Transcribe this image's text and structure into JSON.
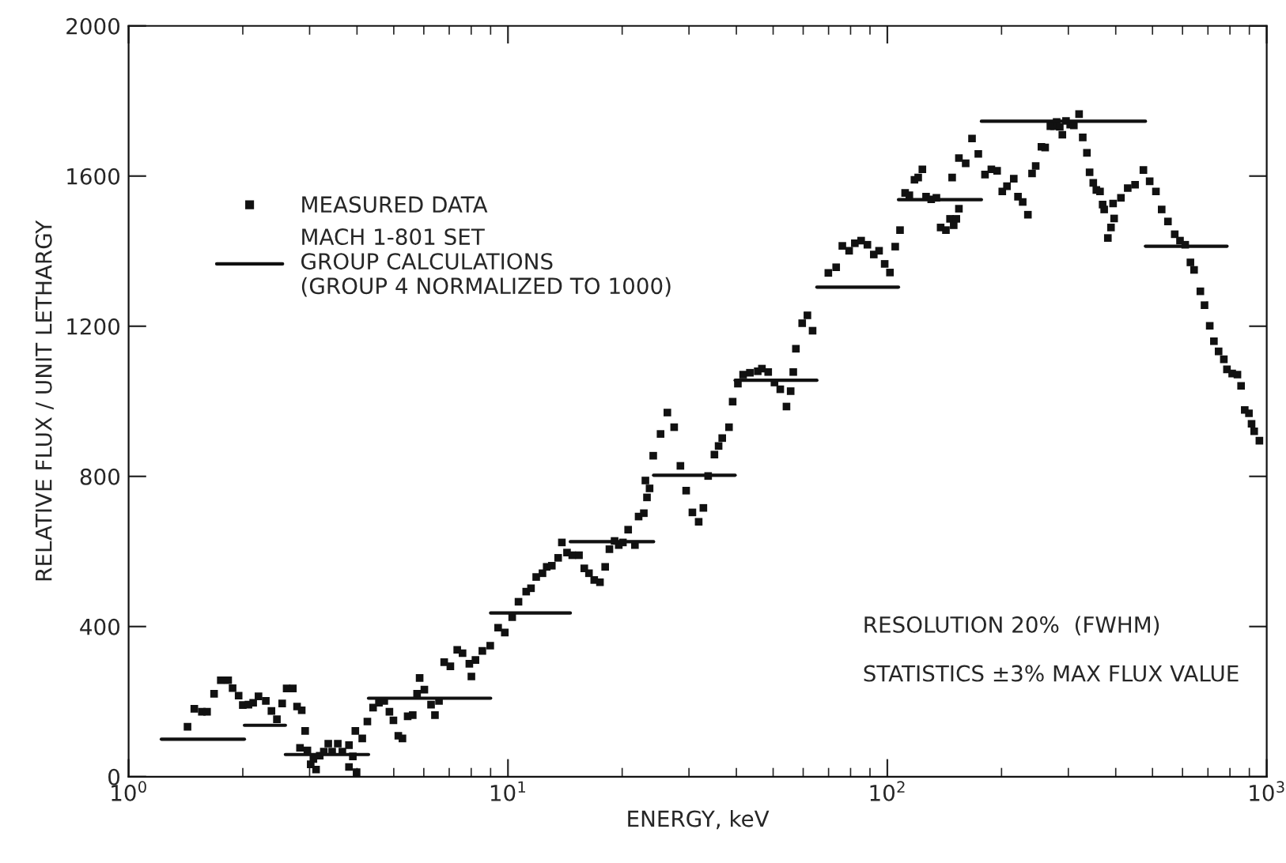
{
  "chart_data": {
    "type": "scatter",
    "xlabel": "ENERGY, keV",
    "ylabel": "RELATIVE FLUX / UNIT LETHARGY",
    "log": "x",
    "xlim": [
      1,
      1000
    ],
    "xticks": [
      {
        "value": 1,
        "label": "10$^{0}$"
      },
      {
        "value": 10,
        "label": "10$^{1}$"
      },
      {
        "value": 100,
        "label": "10$^{2}$"
      },
      {
        "value": 1000,
        "label": "10$^{3}$"
      }
    ],
    "ylim": [
      0,
      2000
    ],
    "yticks": [
      0,
      400,
      800,
      1200,
      1600,
      2000
    ],
    "grid": false,
    "legend": "top left",
    "annotations": [
      "RESOLUTION 20%  (FWHM)",
      "STATISTICS ±3% MAX FLUX VALUE"
    ],
    "series": [
      {
        "name": "MEASURED DATA",
        "marker": "square",
        "color": "#111111",
        "x": [
          1.43,
          1.49,
          1.56,
          1.61,
          1.68,
          1.75,
          1.83,
          1.88,
          1.95,
          2.0,
          2.07,
          2.13,
          2.2,
          2.3,
          2.38,
          2.46,
          2.54,
          2.61,
          2.71,
          2.78,
          2.86,
          2.92,
          2.83,
          2.96,
          3.02,
          3.07,
          3.12,
          3.19,
          3.27,
          3.36,
          3.44,
          3.56,
          3.66,
          3.81,
          3.9,
          3.81,
          3.99,
          3.96,
          4.13,
          4.26,
          4.41,
          4.57,
          4.72,
          4.87,
          4.99,
          5.14,
          5.27,
          5.44,
          5.61,
          5.76,
          5.85,
          6.02,
          6.27,
          6.42,
          6.58,
          6.79,
          7.05,
          7.35,
          7.59,
          7.91,
          8.01,
          8.21,
          8.56,
          8.98,
          9.42,
          9.81,
          10.26,
          10.66,
          11.17,
          11.5,
          11.87,
          12.33,
          12.65,
          13.05,
          13.56,
          13.87,
          14.31,
          14.77,
          15.39,
          15.89,
          16.35,
          16.88,
          17.48,
          18.04,
          18.51,
          19.1,
          19.59,
          20.09,
          20.74,
          21.61,
          22.1,
          22.81,
          23.25,
          23.62,
          23.03,
          24.15,
          25.25,
          26.31,
          27.42,
          28.48,
          29.49,
          30.63,
          31.82,
          32.74,
          33.7,
          35.01,
          35.91,
          36.71,
          38.25,
          39.11,
          40.37,
          41.67,
          43.42,
          45.54,
          46.71,
          48.52,
          50.41,
          52.21,
          54.22,
          55.61,
          56.5,
          57.41,
          59.64,
          61.56,
          63.53,
          69.9,
          73.3,
          76.1,
          79.3,
          82.1,
          85.3,
          88.6,
          92.1,
          95.1,
          98.4,
          101.6,
          104.9,
          108.0,
          111.4,
          114.3,
          117.9,
          120.6,
          123.7,
          126.5,
          130.5,
          134.7,
          138.2,
          142.7,
          146.3,
          149.6,
          152.0,
          154.4,
          148.2,
          154.4,
          160.9,
          167.2,
          173.7,
          180.9,
          188.0,
          194.7,
          200.9,
          206.7,
          215.4,
          221.0,
          227.4,
          234.7,
          240.7,
          246.1,
          254.8,
          260.6,
          269.0,
          275.0,
          279.4,
          284.8,
          289.3,
          295.8,
          303.4,
          310.2,
          320.2,
          327.4,
          335.8,
          341.3,
          349.0,
          355.6,
          363.6,
          369.4,
          372.9,
          381.3,
          388.6,
          396.1,
          393.6,
          412.8,
          430.2,
          449.8,
          473.1,
          491.5,
          510.5,
          528.6,
          549.1,
          572.2,
          590.8,
          609.8,
          629.4,
          643.5,
          668.5,
          685.6,
          707.7,
          725.8,
          746.8,
          770.9,
          785.6,
          811.0,
          837.2,
          856.0,
          875.2,
          897.8,
          912.2,
          926.8,
          956.6
        ],
        "values": [
          133,
          181,
          173,
          173,
          221,
          257,
          257,
          236,
          216,
          191,
          192,
          197,
          214,
          202,
          175,
          153,
          195,
          235,
          235,
          187,
          177,
          122,
          77,
          70,
          33,
          47,
          19,
          56,
          67,
          88,
          67,
          88,
          67,
          84,
          54,
          26,
          12,
          122,
          102,
          147,
          184,
          197,
          202,
          173,
          150,
          109,
          102,
          161,
          164,
          221,
          263,
          232,
          192,
          164,
          202,
          305,
          294,
          338,
          329,
          301,
          267,
          311,
          335,
          349,
          397,
          384,
          425,
          466,
          493,
          502,
          532,
          542,
          559,
          562,
          583,
          624,
          597,
          590,
          590,
          555,
          542,
          524,
          518,
          559,
          606,
          628,
          617,
          624,
          658,
          617,
          693,
          702,
          744,
          768,
          789,
          855,
          913,
          970,
          931,
          828,
          762,
          704,
          679,
          716,
          801,
          858,
          881,
          902,
          931,
          999,
          1047,
          1071,
          1076,
          1080,
          1087,
          1078,
          1050,
          1032,
          986,
          1027,
          1078,
          1140,
          1208,
          1229,
          1188,
          1342,
          1357,
          1414,
          1401,
          1421,
          1428,
          1417,
          1391,
          1401,
          1366,
          1343,
          1412,
          1456,
          1555,
          1549,
          1590,
          1596,
          1618,
          1545,
          1538,
          1542,
          1463,
          1456,
          1486,
          1469,
          1486,
          1513,
          1596,
          1648,
          1634,
          1700,
          1659,
          1604,
          1618,
          1614,
          1559,
          1573,
          1593,
          1545,
          1531,
          1497,
          1607,
          1627,
          1678,
          1676,
          1733,
          1733,
          1744,
          1731,
          1710,
          1747,
          1737,
          1735,
          1765,
          1703,
          1662,
          1610,
          1582,
          1563,
          1559,
          1524,
          1511,
          1435,
          1463,
          1487,
          1527,
          1542,
          1568,
          1577,
          1616,
          1586,
          1559,
          1511,
          1479,
          1445,
          1428,
          1417,
          1370,
          1350,
          1293,
          1256,
          1201,
          1160,
          1133,
          1112,
          1085,
          1074,
          1071,
          1041,
          977,
          968,
          940,
          920,
          895
        ]
      },
      {
        "name": "MACH 1-801 SET\nGROUP CALCULATIONS\n(GROUP 4 NORMALIZED TO 1000)",
        "type": "line",
        "color": "#111111",
        "x": [
          1.22,
          2.02
        ],
        "values": [
          100,
          100
        ]
      },
      {
        "type": "line",
        "color": "#111111",
        "x": [
          2.02,
          2.59
        ],
        "values": [
          137,
          137
        ]
      },
      {
        "type": "line",
        "color": "#111111",
        "x": [
          2.59,
          4.29
        ],
        "values": [
          59,
          59
        ]
      },
      {
        "type": "line",
        "color": "#111111",
        "x": [
          4.29,
          9.0
        ],
        "values": [
          209,
          209
        ]
      },
      {
        "type": "line",
        "color": "#111111",
        "x": [
          9.0,
          14.6
        ],
        "values": [
          436,
          436
        ]
      },
      {
        "type": "line",
        "color": "#111111",
        "x": [
          14.6,
          24.2
        ],
        "values": [
          626,
          626
        ]
      },
      {
        "type": "line",
        "color": "#111111",
        "x": [
          24.2,
          39.7
        ],
        "values": [
          803,
          803
        ]
      },
      {
        "type": "line",
        "color": "#111111",
        "x": [
          39.7,
          65.2
        ],
        "values": [
          1056,
          1056
        ]
      },
      {
        "type": "line",
        "color": "#111111",
        "x": [
          65.2,
          107
        ],
        "values": [
          1304,
          1304
        ]
      },
      {
        "type": "line",
        "color": "#111111",
        "x": [
          107,
          177
        ],
        "values": [
          1537,
          1537
        ]
      },
      {
        "type": "line",
        "color": "#111111",
        "x": [
          177,
          479
        ],
        "values": [
          1746,
          1746
        ]
      },
      {
        "type": "line",
        "color": "#111111",
        "x": [
          479,
          786
        ],
        "values": [
          1413,
          1413
        ]
      }
    ]
  }
}
